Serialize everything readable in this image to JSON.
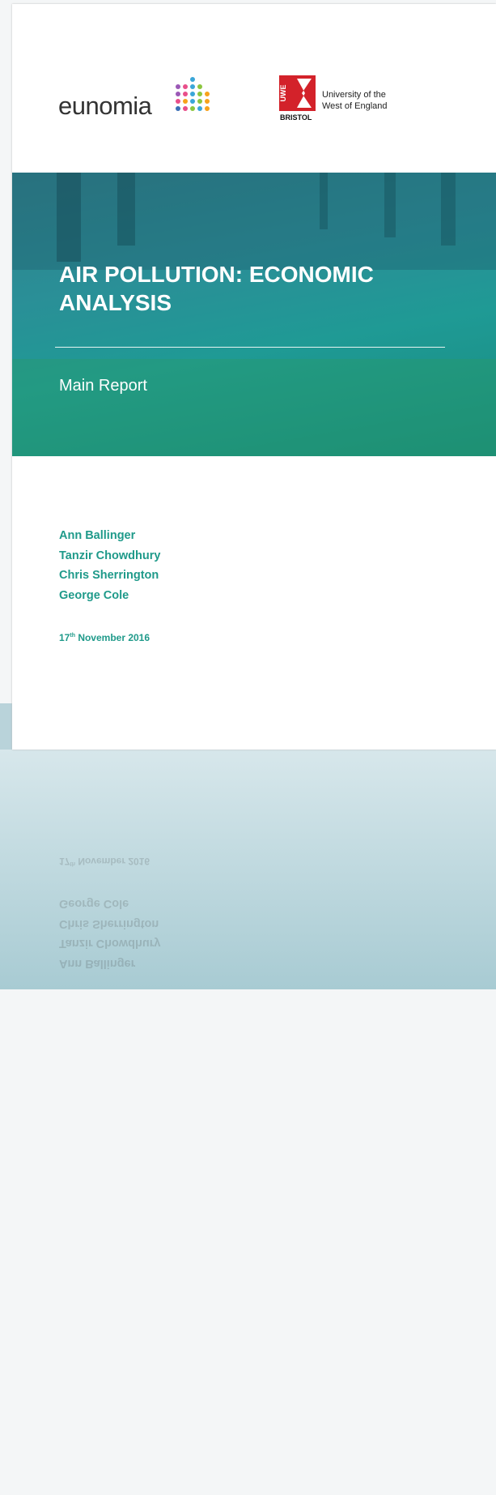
{
  "header": {
    "eunomia": "eunomia",
    "uwe_mark": "UWE",
    "uwe_place": "BRISTOL",
    "uwe_name": [
      "University of the",
      "West of England"
    ]
  },
  "cover": {
    "title": "AIR POLLUTION: ECONOMIC ANALYSIS",
    "subtitle": "Main Report"
  },
  "authors": [
    "Ann Ballinger",
    "Tanzir Chowdhury",
    "Chris Sherrington",
    "George Cole"
  ],
  "date": {
    "day": "17",
    "suffix": "th",
    "rest": "November 2016"
  }
}
